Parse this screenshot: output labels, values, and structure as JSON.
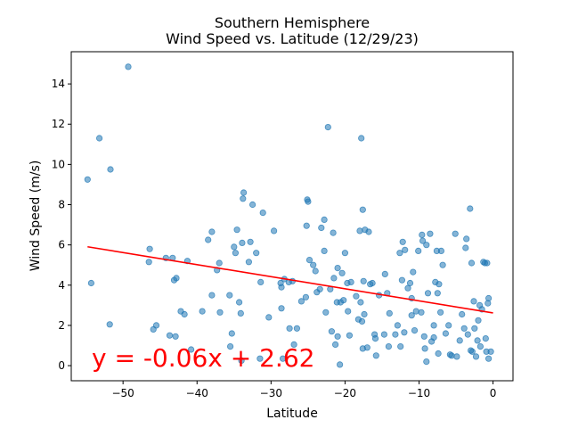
{
  "chart_data": {
    "type": "scatter",
    "title_line1": "Southern Hemisphere",
    "title_line2": "Wind Speed vs. Latitude (12/29/23)",
    "xlabel": "Latitude",
    "ylabel": "Wind Speed (m/s)",
    "xlim": [
      -57,
      2.7
    ],
    "ylim": [
      -0.75,
      15.6
    ],
    "xticks": [
      -50,
      -40,
      -30,
      -20,
      -10,
      0
    ],
    "yticks": [
      0,
      2,
      4,
      6,
      8,
      10,
      12,
      14
    ],
    "grid": false,
    "point_color": "#1f77b4",
    "line_color": "#ff0000",
    "annotation": "y = -0.06x + 2.62",
    "regression": {
      "slope": -0.06,
      "intercept": 2.62,
      "x_start": -54.8,
      "x_end": 0
    },
    "points": [
      [
        -54.8,
        9.25
      ],
      [
        -54.3,
        4.1
      ],
      [
        -53.2,
        11.3
      ],
      [
        -51.8,
        2.05
      ],
      [
        -51.7,
        9.75
      ],
      [
        -49.3,
        14.85
      ],
      [
        -46.4,
        5.8
      ],
      [
        -46.5,
        5.15
      ],
      [
        -45.9,
        1.8
      ],
      [
        -45.5,
        2.0
      ],
      [
        -44.2,
        5.35
      ],
      [
        -43.7,
        1.5
      ],
      [
        -43.3,
        5.35
      ],
      [
        -43.1,
        4.25
      ],
      [
        -42.8,
        4.35
      ],
      [
        -42.9,
        1.45
      ],
      [
        -42.2,
        2.7
      ],
      [
        -41.7,
        2.55
      ],
      [
        -41.3,
        5.2
      ],
      [
        -40.8,
        0.8
      ],
      [
        -39.3,
        2.7
      ],
      [
        -38.5,
        6.25
      ],
      [
        -38.0,
        6.65
      ],
      [
        -38.0,
        3.5
      ],
      [
        -37.3,
        4.75
      ],
      [
        -37.0,
        5.1
      ],
      [
        -36.9,
        2.65
      ],
      [
        -35.6,
        3.5
      ],
      [
        -35.5,
        0.95
      ],
      [
        -35.3,
        1.6
      ],
      [
        -35.0,
        5.9
      ],
      [
        -34.8,
        5.6
      ],
      [
        -34.6,
        6.75
      ],
      [
        -34.3,
        3.15
      ],
      [
        -34.1,
        2.6
      ],
      [
        -34.0,
        0.25
      ],
      [
        -33.9,
        6.1
      ],
      [
        -33.8,
        8.3
      ],
      [
        -33.7,
        8.6
      ],
      [
        -33.0,
        5.15
      ],
      [
        -32.8,
        6.15
      ],
      [
        -32.5,
        8.0
      ],
      [
        -32.0,
        5.6
      ],
      [
        -31.5,
        0.35
      ],
      [
        -31.4,
        4.15
      ],
      [
        -31.1,
        7.6
      ],
      [
        -30.3,
        2.4
      ],
      [
        -29.6,
        6.7
      ],
      [
        -28.7,
        4.1
      ],
      [
        -28.6,
        3.9
      ],
      [
        -28.6,
        2.85
      ],
      [
        -28.4,
        0.35
      ],
      [
        -28.2,
        4.3
      ],
      [
        -27.6,
        4.15
      ],
      [
        -27.5,
        1.85
      ],
      [
        -27.1,
        4.2
      ],
      [
        -26.9,
        1.05
      ],
      [
        -26.5,
        1.85
      ],
      [
        -25.9,
        3.2
      ],
      [
        -25.3,
        3.4
      ],
      [
        -25.2,
        6.95
      ],
      [
        -25.1,
        8.25
      ],
      [
        -25.0,
        8.15
      ],
      [
        -24.8,
        5.25
      ],
      [
        -24.3,
        5.0
      ],
      [
        -24.0,
        4.7
      ],
      [
        -23.8,
        3.65
      ],
      [
        -23.4,
        3.8
      ],
      [
        -23.2,
        6.85
      ],
      [
        -22.8,
        7.25
      ],
      [
        -22.8,
        5.7
      ],
      [
        -22.6,
        2.65
      ],
      [
        -22.3,
        11.85
      ],
      [
        -22.0,
        3.8
      ],
      [
        -21.8,
        1.7
      ],
      [
        -21.6,
        6.6
      ],
      [
        -21.5,
        4.35
      ],
      [
        -21.3,
        1.05
      ],
      [
        -21.1,
        3.15
      ],
      [
        -21.0,
        4.85
      ],
      [
        -21.0,
        1.45
      ],
      [
        -20.6,
        3.15
      ],
      [
        -20.7,
        0.05
      ],
      [
        -20.4,
        4.6
      ],
      [
        -20.2,
        3.25
      ],
      [
        -20.0,
        5.6
      ],
      [
        -19.7,
        4.1
      ],
      [
        -19.6,
        2.7
      ],
      [
        -19.4,
        1.5
      ],
      [
        -19.2,
        4.15
      ],
      [
        -18.5,
        3.45
      ],
      [
        -18.2,
        2.3
      ],
      [
        -18.0,
        6.7
      ],
      [
        -17.9,
        3.15
      ],
      [
        -17.8,
        11.3
      ],
      [
        -17.7,
        2.2
      ],
      [
        -17.6,
        7.75
      ],
      [
        -17.6,
        0.85
      ],
      [
        -17.5,
        4.2
      ],
      [
        -17.4,
        2.55
      ],
      [
        -17.3,
        6.75
      ],
      [
        -17.0,
        0.9
      ],
      [
        -16.8,
        6.65
      ],
      [
        -16.6,
        4.05
      ],
      [
        -16.3,
        4.1
      ],
      [
        -16.0,
        1.55
      ],
      [
        -15.9,
        1.35
      ],
      [
        -15.8,
        0.5
      ],
      [
        -15.4,
        3.5
      ],
      [
        -14.7,
        1.55
      ],
      [
        -14.6,
        4.55
      ],
      [
        -14.3,
        3.6
      ],
      [
        -14.1,
        0.95
      ],
      [
        -14.0,
        2.6
      ],
      [
        -13.2,
        1.55
      ],
      [
        -12.9,
        2.0
      ],
      [
        -12.6,
        5.6
      ],
      [
        -12.5,
        0.95
      ],
      [
        -12.3,
        4.25
      ],
      [
        -12.2,
        6.15
      ],
      [
        -12.0,
        1.65
      ],
      [
        -11.9,
        5.75
      ],
      [
        -11.5,
        3.85
      ],
      [
        -11.2,
        4.1
      ],
      [
        -11.0,
        2.5
      ],
      [
        -11.0,
        3.35
      ],
      [
        -10.8,
        4.65
      ],
      [
        -10.6,
        1.75
      ],
      [
        -10.4,
        2.7
      ],
      [
        -10.1,
        5.7
      ],
      [
        -9.7,
        2.65
      ],
      [
        -9.6,
        6.5
      ],
      [
        -9.5,
        6.2
      ],
      [
        -9.3,
        1.45
      ],
      [
        -9.2,
        0.85
      ],
      [
        -9.0,
        0.2
      ],
      [
        -9.0,
        6.0
      ],
      [
        -8.8,
        3.6
      ],
      [
        -8.5,
        6.55
      ],
      [
        -8.3,
        1.2
      ],
      [
        -8.0,
        1.4
      ],
      [
        -8.0,
        2.0
      ],
      [
        -7.8,
        4.15
      ],
      [
        -7.6,
        5.7
      ],
      [
        -7.5,
        3.6
      ],
      [
        -7.4,
        0.6
      ],
      [
        -7.3,
        4.05
      ],
      [
        -7.1,
        2.65
      ],
      [
        -7.0,
        5.7
      ],
      [
        -6.8,
        5.0
      ],
      [
        -6.4,
        1.6
      ],
      [
        -6.0,
        2.0
      ],
      [
        -5.8,
        0.55
      ],
      [
        -5.6,
        0.5
      ],
      [
        -5.1,
        6.55
      ],
      [
        -4.9,
        0.45
      ],
      [
        -4.5,
        1.25
      ],
      [
        -4.2,
        2.55
      ],
      [
        -3.9,
        1.85
      ],
      [
        -3.7,
        5.85
      ],
      [
        -3.6,
        6.3
      ],
      [
        -3.4,
        1.55
      ],
      [
        -3.1,
        7.8
      ],
      [
        -3.0,
        0.75
      ],
      [
        -2.9,
        5.1
      ],
      [
        -2.8,
        0.7
      ],
      [
        -2.6,
        3.2
      ],
      [
        -2.5,
        1.85
      ],
      [
        -2.3,
        0.45
      ],
      [
        -2.1,
        1.25
      ],
      [
        -2.0,
        2.25
      ],
      [
        -1.8,
        3.0
      ],
      [
        -1.7,
        0.95
      ],
      [
        -1.5,
        2.8
      ],
      [
        -1.3,
        5.15
      ],
      [
        -1.1,
        5.1
      ],
      [
        -1.0,
        1.35
      ],
      [
        -0.9,
        0.7
      ],
      [
        -0.8,
        5.1
      ],
      [
        -0.7,
        3.1
      ],
      [
        -0.6,
        3.35
      ],
      [
        -0.6,
        0.35
      ],
      [
        -0.3,
        0.7
      ]
    ]
  }
}
